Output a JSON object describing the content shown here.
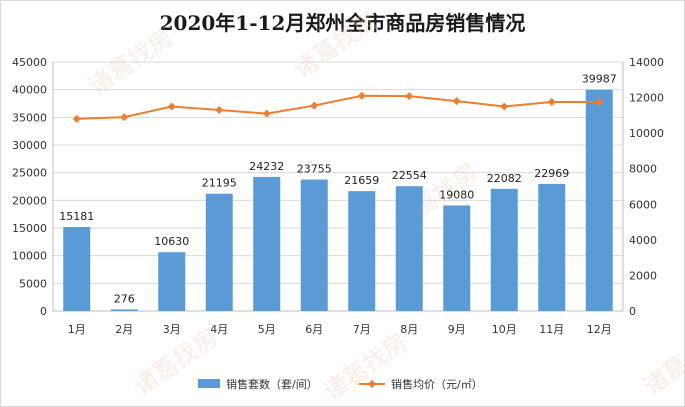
{
  "chart_data": {
    "type": "bar",
    "title": "2020年1-12月郑州全市商品房销售情况",
    "categories": [
      "1月",
      "2月",
      "3月",
      "4月",
      "5月",
      "6月",
      "7月",
      "8月",
      "9月",
      "10月",
      "11月",
      "12月"
    ],
    "series": [
      {
        "name": "销售套数（套/间）",
        "type": "bar",
        "axis": "left",
        "color": "#5b9bd5",
        "values": [
          15181,
          276,
          10630,
          21195,
          24232,
          23755,
          21659,
          22554,
          19080,
          22082,
          22969,
          39987
        ]
      },
      {
        "name": "销售均价（元/㎡）",
        "type": "line",
        "axis": "right",
        "color": "#ed7d31",
        "values": [
          10800,
          10900,
          11500,
          11300,
          11100,
          11550,
          12100,
          12080,
          11800,
          11500,
          11750,
          11750
        ]
      }
    ],
    "y_left": {
      "min": 0,
      "max": 45000,
      "step": 5000,
      "ticks": [
        "0",
        "5000",
        "10000",
        "15000",
        "20000",
        "25000",
        "30000",
        "35000",
        "40000",
        "45000"
      ]
    },
    "y_right": {
      "min": 0,
      "max": 14000,
      "step": 2000,
      "ticks": [
        "0",
        "2000",
        "4000",
        "6000",
        "8000",
        "10000",
        "12000",
        "14000"
      ]
    },
    "grid": true,
    "legend_position": "bottom",
    "watermark": "诸葛找房"
  }
}
